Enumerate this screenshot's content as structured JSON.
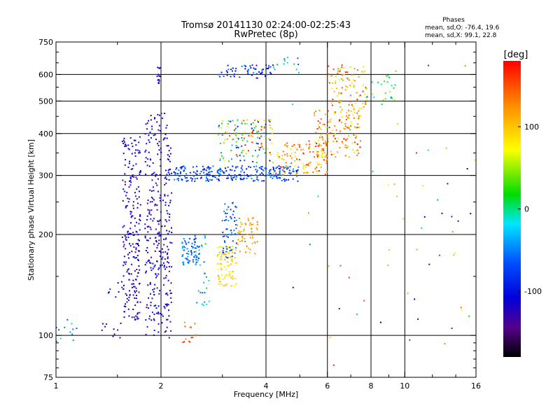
{
  "chart_data": {
    "type": "scatter",
    "title": "Tromsø 20141130 02:24:00-02:25:43",
    "subtitle": "RwPretec (8p)",
    "xlabel": "Frequency [MHz]",
    "ylabel": "Stationary phase Virtual Height [km]",
    "x_scale": "log",
    "y_scale": "log",
    "xlim": [
      1,
      16
    ],
    "ylim": [
      75,
      750
    ],
    "x_ticks": [
      1,
      2,
      4,
      6,
      8,
      10,
      16
    ],
    "x_tick_labels": [
      "1",
      "2",
      "4",
      "6",
      "8",
      "10",
      "16"
    ],
    "y_ticks": [
      75,
      100,
      200,
      300,
      400,
      500,
      600,
      750
    ],
    "y_tick_labels": [
      "75",
      "100",
      "200",
      "300",
      "400",
      "500",
      "600",
      "750"
    ],
    "grid": true,
    "stats": {
      "title": "Phases",
      "line_o": "mean, sd,O: -76.4, 19.6",
      "line_x": "mean, sd,X:  99.1, 22.8"
    },
    "colorbar": {
      "label": "[deg]",
      "range": [
        -180,
        180
      ],
      "ticks": [
        100,
        0,
        -100
      ],
      "tick_labels": [
        "100",
        "0",
        "-100"
      ]
    },
    "clusters": [
      {
        "f": [
          0.98,
          1.15
        ],
        "h": [
          95,
          112
        ],
        "p": [
          -70,
          -20
        ],
        "n": 14
      },
      {
        "f": [
          1.35,
          1.55
        ],
        "h": [
          98,
          112
        ],
        "p": [
          -150,
          -110
        ],
        "n": 10
      },
      {
        "f": [
          1.4,
          1.6
        ],
        "h": [
          125,
          145
        ],
        "p": [
          -120,
          -90
        ],
        "n": 10
      },
      {
        "f": [
          1.55,
          1.75
        ],
        "h": [
          110,
          395
        ],
        "p": [
          -145,
          -95
        ],
        "n": 230
      },
      {
        "f": [
          1.8,
          2.15
        ],
        "h": [
          98,
          460
        ],
        "p": [
          -145,
          -90
        ],
        "n": 320
      },
      {
        "f": [
          1.95,
          2.0
        ],
        "h": [
          560,
          630
        ],
        "p": [
          -120,
          -100
        ],
        "n": 14
      },
      {
        "f": [
          2.3,
          2.6
        ],
        "h": [
          160,
          195
        ],
        "p": [
          -80,
          -30
        ],
        "n": 70
      },
      {
        "f": [
          2.3,
          2.55
        ],
        "h": [
          95,
          110
        ],
        "p": [
          120,
          175
        ],
        "n": 14
      },
      {
        "f": [
          2.5,
          2.75
        ],
        "h": [
          120,
          200
        ],
        "p": [
          -70,
          20
        ],
        "n": 30
      },
      {
        "f": [
          2.9,
          3.3
        ],
        "h": [
          140,
          185
        ],
        "p": [
          70,
          110
        ],
        "n": 90
      },
      {
        "f": [
          3.0,
          3.3
        ],
        "h": [
          170,
          250
        ],
        "p": [
          -90,
          -40
        ],
        "n": 60
      },
      {
        "f": [
          3.3,
          3.8
        ],
        "h": [
          175,
          225
        ],
        "p": [
          90,
          140
        ],
        "n": 55
      },
      {
        "f": [
          2.1,
          5.0
        ],
        "h": [
          288,
          320
        ],
        "p": [
          -110,
          -40
        ],
        "n": 260
      },
      {
        "f": [
          2.9,
          4.2
        ],
        "h": [
          320,
          440
        ],
        "p": [
          -110,
          170
        ],
        "n": 140
      },
      {
        "f": [
          2.9,
          4.2
        ],
        "h": [
          585,
          640
        ],
        "p": [
          -130,
          -40
        ],
        "n": 60
      },
      {
        "f": [
          4.2,
          5.0
        ],
        "h": [
          620,
          680
        ],
        "p": [
          -80,
          20
        ],
        "n": 12
      },
      {
        "f": [
          4.2,
          6.0
        ],
        "h": [
          300,
          380
        ],
        "p": [
          70,
          170
        ],
        "n": 120
      },
      {
        "f": [
          5.5,
          7.5
        ],
        "h": [
          340,
          470
        ],
        "p": [
          60,
          175
        ],
        "n": 140
      },
      {
        "f": [
          6.0,
          7.8
        ],
        "h": [
          470,
          640
        ],
        "p": [
          40,
          175
        ],
        "n": 90
      },
      {
        "f": [
          7.5,
          9.5
        ],
        "h": [
          500,
          620
        ],
        "p": [
          -60,
          60
        ],
        "n": 25
      },
      {
        "f": [
          4.5,
          16
        ],
        "h": [
          80,
          640
        ],
        "p": [
          -170,
          170
        ],
        "n": 60
      }
    ]
  }
}
